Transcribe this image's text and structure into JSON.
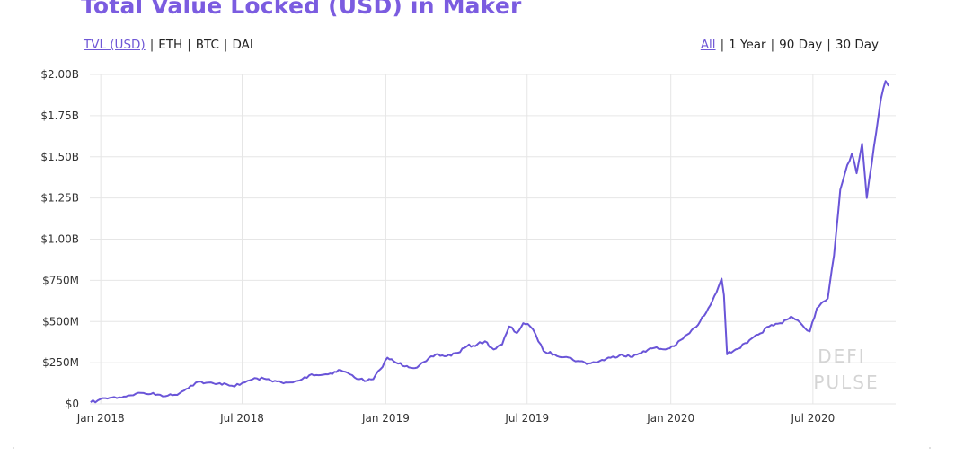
{
  "title": "Total Value Locked (USD) in Maker",
  "metric_tabs": [
    {
      "label": "TVL (USD)",
      "active": true
    },
    {
      "label": "ETH",
      "active": false
    },
    {
      "label": "BTC",
      "active": false
    },
    {
      "label": "DAI",
      "active": false
    }
  ],
  "range_tabs": [
    {
      "label": "All",
      "active": true
    },
    {
      "label": "1 Year",
      "active": false
    },
    {
      "label": "90 Day",
      "active": false
    },
    {
      "label": "30 Day",
      "active": false
    }
  ],
  "separator": "|",
  "watermark": [
    "DEFI",
    "PULSE"
  ],
  "colors": {
    "line": "#6a55d8",
    "title": "#7b5ce0",
    "active_tab": "#6f57d6",
    "grid": "#e6e6e6"
  },
  "chart_data": {
    "type": "line",
    "title": "Total Value Locked (USD) in Maker",
    "xlabel": "",
    "ylabel": "",
    "grid": true,
    "xlim": [
      "2017-12-18",
      "2020-10-15"
    ],
    "ylim": [
      0,
      2000000000
    ],
    "yticks": [
      {
        "value": 0,
        "label": "$0"
      },
      {
        "value": 250000000,
        "label": "$250M"
      },
      {
        "value": 500000000,
        "label": "$500M"
      },
      {
        "value": 750000000,
        "label": "$750M"
      },
      {
        "value": 1000000000,
        "label": "$1.00B"
      },
      {
        "value": 1250000000,
        "label": "$1.25B"
      },
      {
        "value": 1500000000,
        "label": "$1.50B"
      },
      {
        "value": 1750000000,
        "label": "$1.75B"
      },
      {
        "value": 2000000000,
        "label": "$2.00B"
      }
    ],
    "xticks": [
      {
        "value": "2018-01-01",
        "label": "Jan 2018"
      },
      {
        "value": "2018-07-01",
        "label": "Jul 2018"
      },
      {
        "value": "2019-01-01",
        "label": "Jan 2019"
      },
      {
        "value": "2019-07-01",
        "label": "Jul 2019"
      },
      {
        "value": "2020-01-01",
        "label": "Jan 2020"
      },
      {
        "value": "2020-07-01",
        "label": "Jul 2020"
      }
    ],
    "series": [
      {
        "name": "",
        "points": [
          [
            "2017-12-19",
            10000000
          ],
          [
            "2017-12-28",
            20000000
          ],
          [
            "2018-01-07",
            35000000
          ],
          [
            "2018-01-15",
            38000000
          ],
          [
            "2018-01-25",
            40000000
          ],
          [
            "2018-02-05",
            50000000
          ],
          [
            "2018-02-15",
            62000000
          ],
          [
            "2018-02-25",
            66000000
          ],
          [
            "2018-03-06",
            60000000
          ],
          [
            "2018-03-18",
            55000000
          ],
          [
            "2018-03-28",
            50000000
          ],
          [
            "2018-04-06",
            55000000
          ],
          [
            "2018-04-15",
            75000000
          ],
          [
            "2018-04-26",
            110000000
          ],
          [
            "2018-05-06",
            135000000
          ],
          [
            "2018-05-16",
            128000000
          ],
          [
            "2018-05-28",
            120000000
          ],
          [
            "2018-06-08",
            125000000
          ],
          [
            "2018-06-18",
            110000000
          ],
          [
            "2018-06-28",
            115000000
          ],
          [
            "2018-07-08",
            140000000
          ],
          [
            "2018-07-20",
            155000000
          ],
          [
            "2018-08-01",
            150000000
          ],
          [
            "2018-08-12",
            140000000
          ],
          [
            "2018-08-23",
            125000000
          ],
          [
            "2018-09-04",
            130000000
          ],
          [
            "2018-09-16",
            150000000
          ],
          [
            "2018-09-28",
            180000000
          ],
          [
            "2018-10-10",
            175000000
          ],
          [
            "2018-10-22",
            185000000
          ],
          [
            "2018-11-04",
            205000000
          ],
          [
            "2018-11-16",
            180000000
          ],
          [
            "2018-11-28",
            150000000
          ],
          [
            "2018-12-08",
            140000000
          ],
          [
            "2018-12-16",
            150000000
          ],
          [
            "2018-12-25",
            210000000
          ],
          [
            "2019-01-03",
            280000000
          ],
          [
            "2019-01-14",
            250000000
          ],
          [
            "2019-01-28",
            230000000
          ],
          [
            "2019-02-10",
            220000000
          ],
          [
            "2019-02-22",
            260000000
          ],
          [
            "2019-03-06",
            300000000
          ],
          [
            "2019-03-20",
            290000000
          ],
          [
            "2019-04-03",
            310000000
          ],
          [
            "2019-04-15",
            350000000
          ],
          [
            "2019-04-28",
            360000000
          ],
          [
            "2019-05-08",
            380000000
          ],
          [
            "2019-05-19",
            330000000
          ],
          [
            "2019-05-30",
            360000000
          ],
          [
            "2019-06-08",
            470000000
          ],
          [
            "2019-06-18",
            430000000
          ],
          [
            "2019-06-26",
            490000000
          ],
          [
            "2019-07-05",
            470000000
          ],
          [
            "2019-07-12",
            420000000
          ],
          [
            "2019-07-22",
            320000000
          ],
          [
            "2019-08-05",
            300000000
          ],
          [
            "2019-08-20",
            285000000
          ],
          [
            "2019-09-04",
            260000000
          ],
          [
            "2019-09-18",
            245000000
          ],
          [
            "2019-10-02",
            260000000
          ],
          [
            "2019-10-16",
            280000000
          ],
          [
            "2019-10-30",
            300000000
          ],
          [
            "2019-11-13",
            285000000
          ],
          [
            "2019-11-27",
            320000000
          ],
          [
            "2019-12-11",
            340000000
          ],
          [
            "2019-12-25",
            330000000
          ],
          [
            "2020-01-08",
            360000000
          ],
          [
            "2020-01-22",
            420000000
          ],
          [
            "2020-02-05",
            480000000
          ],
          [
            "2020-02-18",
            580000000
          ],
          [
            "2020-03-02",
            710000000
          ],
          [
            "2020-03-06",
            760000000
          ],
          [
            "2020-03-09",
            660000000
          ],
          [
            "2020-03-13",
            300000000
          ],
          [
            "2020-03-24",
            330000000
          ],
          [
            "2020-04-08",
            370000000
          ],
          [
            "2020-04-22",
            420000000
          ],
          [
            "2020-05-06",
            470000000
          ],
          [
            "2020-05-20",
            490000000
          ],
          [
            "2020-06-03",
            530000000
          ],
          [
            "2020-06-17",
            480000000
          ],
          [
            "2020-06-27",
            440000000
          ],
          [
            "2020-07-06",
            580000000
          ],
          [
            "2020-07-20",
            640000000
          ],
          [
            "2020-07-28",
            900000000
          ],
          [
            "2020-08-05",
            1300000000
          ],
          [
            "2020-08-14",
            1450000000
          ],
          [
            "2020-08-20",
            1520000000
          ],
          [
            "2020-08-26",
            1400000000
          ],
          [
            "2020-09-02",
            1580000000
          ],
          [
            "2020-09-08",
            1250000000
          ],
          [
            "2020-09-14",
            1450000000
          ],
          [
            "2020-09-20",
            1650000000
          ],
          [
            "2020-09-26",
            1850000000
          ],
          [
            "2020-10-02",
            1960000000
          ],
          [
            "2020-10-06",
            1930000000
          ]
        ]
      }
    ]
  }
}
